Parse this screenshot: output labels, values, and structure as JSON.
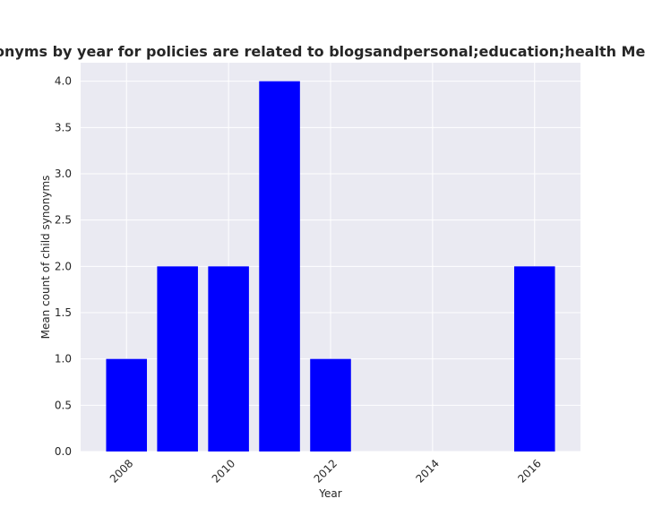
{
  "chart_data": {
    "type": "bar",
    "title": "Percentage of policies that mention child synonyms by year for policies are related to blogsandpersonal;education;health Mean count of child synonyms in privacy policies",
    "xlabel": "Year",
    "ylabel": "Mean count of child synonyms",
    "x": [
      2008,
      2009,
      2010,
      2011,
      2012,
      2016
    ],
    "values": [
      1.0,
      2.0,
      2.0,
      4.0,
      1.0,
      2.0
    ],
    "xticks": [
      2008,
      2010,
      2012,
      2014,
      2016
    ],
    "xlim": [
      2007.1,
      2016.9
    ],
    "yticks": [
      "0.0",
      "0.5",
      "1.0",
      "1.5",
      "2.0",
      "2.5",
      "3.0",
      "3.5",
      "4.0"
    ],
    "ylim": [
      0,
      4.2
    ],
    "bar_color": "#0000ff",
    "plot_background": "#eaeaf2",
    "grid": true
  }
}
